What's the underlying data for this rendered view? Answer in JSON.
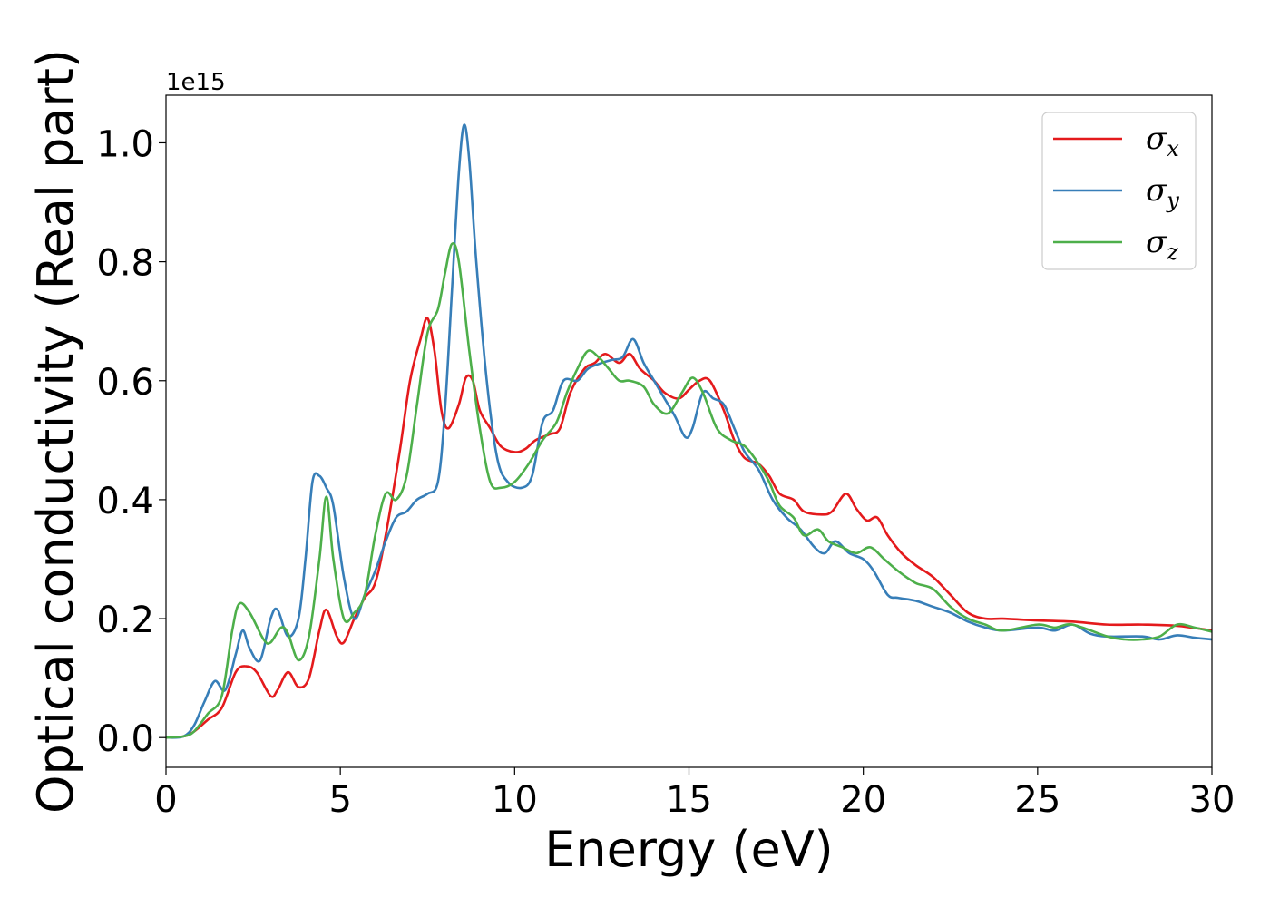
{
  "chart_data": {
    "type": "line",
    "xlabel": "Energy (eV)",
    "ylabel": "Optical conductivity (Real part)",
    "y_offset_label": "1e15",
    "xlim": [
      0,
      30
    ],
    "ylim": [
      -0.05,
      1.08
    ],
    "x_ticks": [
      0,
      5,
      10,
      15,
      20,
      25,
      30
    ],
    "x_tick_labels": [
      "0",
      "5",
      "10",
      "15",
      "20",
      "25",
      "30"
    ],
    "y_ticks": [
      0.0,
      0.2,
      0.4,
      0.6,
      0.8,
      1.0
    ],
    "y_tick_labels": [
      "0.0",
      "0.2",
      "0.4",
      "0.6",
      "0.8",
      "1.0"
    ],
    "grid": false,
    "legend_position": "top-right",
    "series": [
      {
        "name": "σx",
        "legend_base": "σ",
        "legend_sub": "x",
        "color": "#e41a1c",
        "points": [
          [
            0,
            0
          ],
          [
            0.5,
            0.002
          ],
          [
            0.8,
            0.01
          ],
          [
            1.2,
            0.03
          ],
          [
            1.6,
            0.05
          ],
          [
            2.0,
            0.11
          ],
          [
            2.3,
            0.12
          ],
          [
            2.6,
            0.11
          ],
          [
            3.0,
            0.07
          ],
          [
            3.2,
            0.08
          ],
          [
            3.5,
            0.11
          ],
          [
            3.8,
            0.085
          ],
          [
            4.1,
            0.1
          ],
          [
            4.4,
            0.18
          ],
          [
            4.6,
            0.215
          ],
          [
            4.9,
            0.17
          ],
          [
            5.1,
            0.16
          ],
          [
            5.4,
            0.2
          ],
          [
            5.7,
            0.235
          ],
          [
            6.0,
            0.26
          ],
          [
            6.3,
            0.34
          ],
          [
            6.7,
            0.48
          ],
          [
            7.0,
            0.6
          ],
          [
            7.3,
            0.67
          ],
          [
            7.5,
            0.705
          ],
          [
            7.7,
            0.65
          ],
          [
            7.9,
            0.55
          ],
          [
            8.1,
            0.52
          ],
          [
            8.4,
            0.56
          ],
          [
            8.6,
            0.605
          ],
          [
            8.8,
            0.6
          ],
          [
            9.0,
            0.55
          ],
          [
            9.3,
            0.52
          ],
          [
            9.6,
            0.49
          ],
          [
            10.0,
            0.48
          ],
          [
            10.3,
            0.485
          ],
          [
            10.6,
            0.5
          ],
          [
            11.0,
            0.51
          ],
          [
            11.3,
            0.52
          ],
          [
            11.6,
            0.58
          ],
          [
            12.0,
            0.62
          ],
          [
            12.3,
            0.63
          ],
          [
            12.6,
            0.645
          ],
          [
            13.0,
            0.63
          ],
          [
            13.3,
            0.645
          ],
          [
            13.6,
            0.62
          ],
          [
            14.0,
            0.6
          ],
          [
            14.3,
            0.58
          ],
          [
            14.7,
            0.57
          ],
          [
            15.0,
            0.585
          ],
          [
            15.3,
            0.6
          ],
          [
            15.6,
            0.6
          ],
          [
            16.0,
            0.55
          ],
          [
            16.3,
            0.5
          ],
          [
            16.6,
            0.47
          ],
          [
            17.0,
            0.46
          ],
          [
            17.3,
            0.44
          ],
          [
            17.6,
            0.41
          ],
          [
            18.0,
            0.4
          ],
          [
            18.3,
            0.38
          ],
          [
            18.8,
            0.375
          ],
          [
            19.1,
            0.38
          ],
          [
            19.5,
            0.41
          ],
          [
            19.8,
            0.385
          ],
          [
            20.1,
            0.365
          ],
          [
            20.4,
            0.37
          ],
          [
            20.7,
            0.34
          ],
          [
            21.1,
            0.31
          ],
          [
            21.5,
            0.29
          ],
          [
            22.0,
            0.27
          ],
          [
            22.5,
            0.24
          ],
          [
            23.0,
            0.21
          ],
          [
            23.5,
            0.2
          ],
          [
            24.0,
            0.2
          ],
          [
            25.0,
            0.197
          ],
          [
            26.0,
            0.195
          ],
          [
            27.0,
            0.19
          ],
          [
            28.0,
            0.19
          ],
          [
            29.0,
            0.188
          ],
          [
            30.0,
            0.18
          ]
        ]
      },
      {
        "name": "σy",
        "legend_base": "σ",
        "legend_sub": "y",
        "color": "#377eb8",
        "points": [
          [
            0,
            0
          ],
          [
            0.5,
            0.002
          ],
          [
            0.8,
            0.02
          ],
          [
            1.1,
            0.06
          ],
          [
            1.4,
            0.095
          ],
          [
            1.7,
            0.08
          ],
          [
            2.0,
            0.14
          ],
          [
            2.2,
            0.18
          ],
          [
            2.4,
            0.15
          ],
          [
            2.7,
            0.13
          ],
          [
            3.0,
            0.2
          ],
          [
            3.2,
            0.215
          ],
          [
            3.5,
            0.17
          ],
          [
            3.8,
            0.2
          ],
          [
            4.0,
            0.3
          ],
          [
            4.2,
            0.43
          ],
          [
            4.4,
            0.44
          ],
          [
            4.6,
            0.42
          ],
          [
            4.8,
            0.39
          ],
          [
            5.1,
            0.27
          ],
          [
            5.4,
            0.2
          ],
          [
            5.7,
            0.24
          ],
          [
            6.0,
            0.28
          ],
          [
            6.3,
            0.33
          ],
          [
            6.6,
            0.37
          ],
          [
            6.9,
            0.38
          ],
          [
            7.2,
            0.4
          ],
          [
            7.5,
            0.41
          ],
          [
            7.8,
            0.43
          ],
          [
            8.0,
            0.55
          ],
          [
            8.2,
            0.75
          ],
          [
            8.4,
            0.95
          ],
          [
            8.55,
            1.03
          ],
          [
            8.7,
            0.97
          ],
          [
            8.9,
            0.8
          ],
          [
            9.2,
            0.6
          ],
          [
            9.5,
            0.47
          ],
          [
            9.8,
            0.43
          ],
          [
            10.2,
            0.42
          ],
          [
            10.5,
            0.44
          ],
          [
            10.8,
            0.53
          ],
          [
            11.1,
            0.55
          ],
          [
            11.4,
            0.6
          ],
          [
            11.8,
            0.6
          ],
          [
            12.1,
            0.62
          ],
          [
            12.5,
            0.63
          ],
          [
            12.8,
            0.635
          ],
          [
            13.1,
            0.64
          ],
          [
            13.4,
            0.67
          ],
          [
            13.7,
            0.63
          ],
          [
            14.0,
            0.6
          ],
          [
            14.3,
            0.57
          ],
          [
            14.6,
            0.54
          ],
          [
            14.9,
            0.505
          ],
          [
            15.1,
            0.52
          ],
          [
            15.4,
            0.58
          ],
          [
            15.7,
            0.57
          ],
          [
            16.0,
            0.56
          ],
          [
            16.3,
            0.52
          ],
          [
            16.6,
            0.48
          ],
          [
            17.0,
            0.45
          ],
          [
            17.4,
            0.4
          ],
          [
            17.8,
            0.37
          ],
          [
            18.2,
            0.35
          ],
          [
            18.6,
            0.32
          ],
          [
            18.9,
            0.31
          ],
          [
            19.2,
            0.33
          ],
          [
            19.6,
            0.31
          ],
          [
            20.0,
            0.3
          ],
          [
            20.3,
            0.28
          ],
          [
            20.7,
            0.24
          ],
          [
            21.0,
            0.235
          ],
          [
            21.5,
            0.23
          ],
          [
            22.0,
            0.22
          ],
          [
            22.5,
            0.21
          ],
          [
            23.0,
            0.195
          ],
          [
            23.5,
            0.185
          ],
          [
            24.0,
            0.18
          ],
          [
            25.0,
            0.185
          ],
          [
            25.5,
            0.18
          ],
          [
            26.0,
            0.19
          ],
          [
            26.5,
            0.175
          ],
          [
            27.0,
            0.17
          ],
          [
            28.0,
            0.17
          ],
          [
            28.5,
            0.165
          ],
          [
            29.0,
            0.172
          ],
          [
            29.5,
            0.168
          ],
          [
            30.0,
            0.165
          ]
        ]
      },
      {
        "name": "σz",
        "legend_base": "σ",
        "legend_sub": "z",
        "color": "#4daf4a",
        "points": [
          [
            0,
            0
          ],
          [
            0.5,
            0.002
          ],
          [
            0.8,
            0.01
          ],
          [
            1.2,
            0.04
          ],
          [
            1.6,
            0.07
          ],
          [
            1.9,
            0.18
          ],
          [
            2.1,
            0.225
          ],
          [
            2.4,
            0.21
          ],
          [
            2.8,
            0.165
          ],
          [
            3.0,
            0.16
          ],
          [
            3.3,
            0.185
          ],
          [
            3.5,
            0.175
          ],
          [
            3.8,
            0.13
          ],
          [
            4.1,
            0.17
          ],
          [
            4.4,
            0.3
          ],
          [
            4.6,
            0.405
          ],
          [
            4.8,
            0.3
          ],
          [
            5.1,
            0.2
          ],
          [
            5.4,
            0.21
          ],
          [
            5.7,
            0.24
          ],
          [
            6.0,
            0.34
          ],
          [
            6.3,
            0.41
          ],
          [
            6.6,
            0.4
          ],
          [
            6.9,
            0.44
          ],
          [
            7.2,
            0.56
          ],
          [
            7.5,
            0.68
          ],
          [
            7.8,
            0.72
          ],
          [
            8.0,
            0.78
          ],
          [
            8.2,
            0.83
          ],
          [
            8.4,
            0.8
          ],
          [
            8.7,
            0.65
          ],
          [
            9.0,
            0.52
          ],
          [
            9.3,
            0.43
          ],
          [
            9.6,
            0.42
          ],
          [
            10.0,
            0.43
          ],
          [
            10.4,
            0.46
          ],
          [
            10.8,
            0.5
          ],
          [
            11.2,
            0.53
          ],
          [
            11.5,
            0.58
          ],
          [
            11.8,
            0.62
          ],
          [
            12.1,
            0.65
          ],
          [
            12.4,
            0.64
          ],
          [
            12.7,
            0.62
          ],
          [
            13.0,
            0.6
          ],
          [
            13.3,
            0.6
          ],
          [
            13.7,
            0.59
          ],
          [
            14.0,
            0.56
          ],
          [
            14.4,
            0.545
          ],
          [
            14.8,
            0.58
          ],
          [
            15.1,
            0.605
          ],
          [
            15.4,
            0.58
          ],
          [
            15.8,
            0.52
          ],
          [
            16.2,
            0.5
          ],
          [
            16.6,
            0.49
          ],
          [
            17.0,
            0.46
          ],
          [
            17.3,
            0.43
          ],
          [
            17.6,
            0.39
          ],
          [
            18.0,
            0.37
          ],
          [
            18.3,
            0.34
          ],
          [
            18.7,
            0.35
          ],
          [
            19.0,
            0.33
          ],
          [
            19.4,
            0.32
          ],
          [
            19.8,
            0.31
          ],
          [
            20.2,
            0.32
          ],
          [
            20.6,
            0.3
          ],
          [
            21.0,
            0.28
          ],
          [
            21.5,
            0.26
          ],
          [
            22.0,
            0.25
          ],
          [
            22.5,
            0.22
          ],
          [
            23.0,
            0.2
          ],
          [
            23.5,
            0.19
          ],
          [
            24.0,
            0.18
          ],
          [
            25.0,
            0.19
          ],
          [
            25.5,
            0.185
          ],
          [
            26.0,
            0.19
          ],
          [
            27.0,
            0.17
          ],
          [
            27.5,
            0.165
          ],
          [
            28.0,
            0.165
          ],
          [
            28.5,
            0.17
          ],
          [
            29.0,
            0.19
          ],
          [
            29.5,
            0.185
          ],
          [
            30.0,
            0.178
          ]
        ]
      }
    ]
  }
}
